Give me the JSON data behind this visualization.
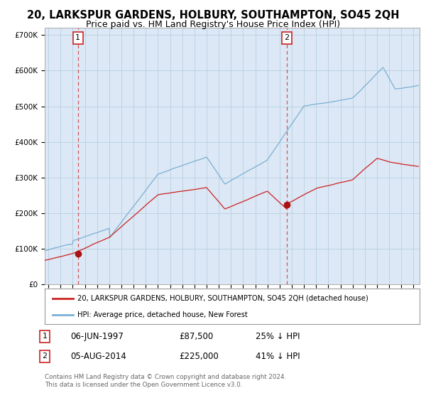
{
  "title": "20, LARKSPUR GARDENS, HOLBURY, SOUTHAMPTON, SO45 2QH",
  "subtitle": "Price paid vs. HM Land Registry's House Price Index (HPI)",
  "title_fontsize": 10.5,
  "subtitle_fontsize": 9,
  "background_color": "#ffffff",
  "plot_bg_color": "#dce8f5",
  "ylabel_ticks": [
    "£0",
    "£100K",
    "£200K",
    "£300K",
    "£400K",
    "£500K",
    "£600K",
    "£700K"
  ],
  "ytick_values": [
    0,
    100000,
    200000,
    300000,
    400000,
    500000,
    600000,
    700000
  ],
  "ylim": [
    0,
    720000
  ],
  "xlim_start": 1994.7,
  "xlim_end": 2025.5,
  "hpi_color": "#7ab0d4",
  "price_color": "#cc2222",
  "dot_color": "#aa1111",
  "purchase1_x": 1997.43,
  "purchase1_y": 87500,
  "purchase1_label": "1",
  "purchase2_x": 2014.59,
  "purchase2_y": 225000,
  "purchase2_label": "2",
  "legend_line1": "20, LARKSPUR GARDENS, HOLBURY, SOUTHAMPTON, SO45 2QH (detached house)",
  "legend_line2": "HPI: Average price, detached house, New Forest",
  "footer": "Contains HM Land Registry data © Crown copyright and database right 2024.\nThis data is licensed under the Open Government Licence v3.0.",
  "grid_color": "#b8cfe0",
  "dashed_line_color": "#cc2222"
}
